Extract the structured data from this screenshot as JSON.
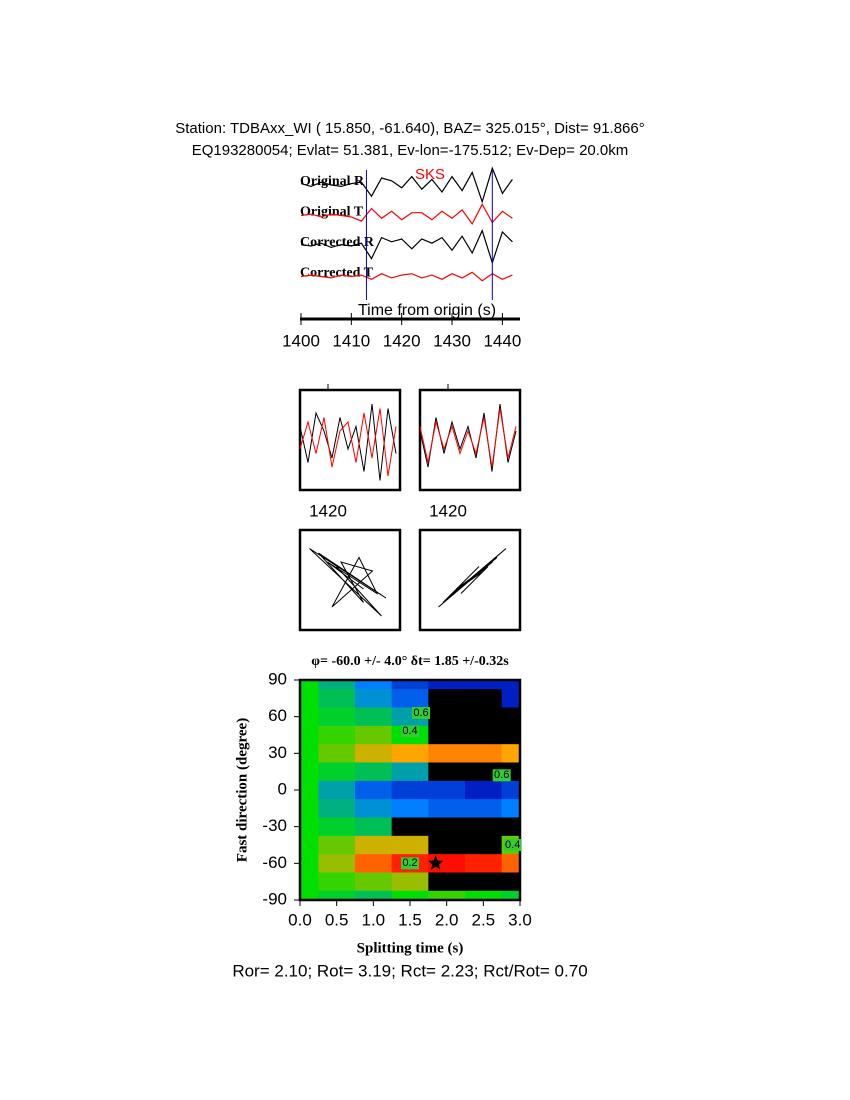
{
  "header": {
    "line1": "Station: TDBAxx_WI (  15.850,  -61.640), BAZ=  325.015°, Dist=   91.866°",
    "line2": "EQ193280054; Evlat=  51.381, Ev-lon=-175.512; Ev-Dep= 20.0km"
  },
  "footer": "Ror= 2.10; Rot= 3.19; Rct= 2.23; Rct/Rot= 0.70",
  "chart_data": [
    {
      "type": "line",
      "x_label": "Time from origin (s)",
      "phase_label": "SKS",
      "xlim": [
        1400,
        1443.5
      ],
      "xticks": [
        1400,
        1410,
        1420,
        1430,
        1440
      ],
      "markers": [
        1413,
        1438
      ],
      "marker_color": "#0000cc",
      "x": [
        1400,
        1402,
        1404,
        1406,
        1408,
        1410,
        1412,
        1414,
        1416,
        1418,
        1420,
        1422,
        1424,
        1426,
        1428,
        1430,
        1432,
        1434,
        1436,
        1438,
        1440,
        1442
      ],
      "series": [
        {
          "name": "Original R",
          "color": "#000000",
          "values": [
            0.1,
            -0.1,
            0.2,
            0,
            -0.1,
            0.1,
            0.2,
            -0.8,
            0.5,
            0.3,
            -0.2,
            0.6,
            -0.3,
            0.4,
            -0.5,
            0.6,
            -0.4,
            0.9,
            -1.2,
            1.2,
            -0.6,
            0.4
          ]
        },
        {
          "name": "Original T",
          "color": "#ff0000",
          "values": [
            0,
            0.1,
            -0.1,
            0.1,
            0,
            -0.1,
            -0.4,
            0.5,
            -0.2,
            0.3,
            -0.3,
            0.2,
            0.2,
            -0.3,
            0.3,
            -0.2,
            0.4,
            -0.6,
            0.8,
            -0.5,
            0.3,
            -0.2
          ]
        },
        {
          "name": "Corrected R",
          "color": "#000000",
          "values": [
            0.1,
            0,
            0.2,
            -0.1,
            0.1,
            0,
            0.2,
            -0.9,
            0.6,
            0.3,
            0.5,
            -0.2,
            0.5,
            0.2,
            0.6,
            -0.3,
            0.7,
            -0.5,
            1.1,
            -1.2,
            1.0,
            0.3
          ]
        },
        {
          "name": "Corrected T",
          "color": "#ff0000",
          "values": [
            0,
            0.1,
            0,
            -0.1,
            0.1,
            0,
            0.1,
            -0.2,
            0.2,
            -0.1,
            0.1,
            0.2,
            -0.1,
            0.1,
            -0.2,
            0.2,
            -0.1,
            0.3,
            -0.3,
            0.2,
            -0.2,
            0.1
          ]
        }
      ]
    },
    {
      "type": "window",
      "panels": [
        {
          "xlim": [
            1413,
            1438
          ],
          "xticks": [
            1420
          ],
          "x": [
            1413,
            1415,
            1417,
            1419,
            1421,
            1423,
            1425,
            1427,
            1429,
            1431,
            1433,
            1435,
            1437
          ],
          "series": [
            {
              "color": "#000000",
              "values": [
                0.3,
                -0.5,
                0.6,
                0.2,
                -0.4,
                0.5,
                -0.2,
                0.3,
                -0.7,
                0.8,
                -0.9,
                0.7,
                -0.3
              ]
            },
            {
              "color": "#ff0000",
              "values": [
                -0.2,
                0.4,
                -0.3,
                0.5,
                -0.6,
                0.2,
                0.4,
                -0.5,
                0.6,
                -0.4,
                0.7,
                -0.8,
                0.3
              ]
            }
          ]
        },
        {
          "xlim": [
            1413,
            1438
          ],
          "xticks": [
            1420
          ],
          "x": [
            1413,
            1415,
            1417,
            1419,
            1421,
            1423,
            1425,
            1427,
            1429,
            1431,
            1433,
            1435,
            1437
          ],
          "series": [
            {
              "color": "#000000",
              "values": [
                0.2,
                -0.6,
                0.5,
                -0.3,
                0.4,
                -0.2,
                0.3,
                -0.4,
                0.6,
                -0.7,
                0.8,
                -0.5,
                0.2
              ]
            },
            {
              "color": "#ff0000",
              "values": [
                0.3,
                -0.5,
                0.4,
                -0.2,
                0.3,
                -0.3,
                0.2,
                -0.3,
                0.5,
                -0.6,
                0.7,
                -0.4,
                0.3
              ]
            }
          ]
        }
      ]
    },
    {
      "type": "heatmap",
      "title": "φ= -60.0 +/- 4.0° δt= 1.85 +/-0.32s",
      "x_label": "Splitting time (s)",
      "y_label": "Fast direction (degree)",
      "xlim": [
        0,
        3
      ],
      "ylim": [
        -90,
        90
      ],
      "xticks": [
        {
          "value": 0,
          "label": "0.0"
        },
        0.5,
        {
          "value": 1,
          "label": "1.0"
        },
        1.5,
        {
          "value": 2,
          "label": "2.0"
        },
        2.5,
        {
          "value": 3,
          "label": "3.0"
        }
      ],
      "yticks": [
        90,
        60,
        30,
        0,
        -30,
        -60,
        -90
      ],
      "x": [
        0,
        0.5,
        1,
        1.5,
        2,
        2.5,
        3
      ],
      "y": [
        90,
        75,
        60,
        45,
        30,
        15,
        0,
        -15,
        -30,
        -45,
        -60,
        -75,
        -90
      ],
      "z": [
        [
          0.5,
          0.65,
          0.8,
          0.9,
          0.95,
          0.95,
          0.95
        ],
        [
          0.5,
          0.6,
          0.75,
          0.85,
          1.1,
          1.1,
          0.95
        ],
        [
          0.5,
          0.55,
          0.6,
          0.7,
          1.1,
          1.2,
          1.1
        ],
        [
          0.5,
          0.45,
          0.4,
          0.5,
          1.1,
          1.1,
          1.1
        ],
        [
          0.5,
          0.4,
          0.3,
          0.25,
          0.2,
          0.2,
          0.25
        ],
        [
          0.5,
          0.55,
          0.6,
          0.7,
          1.1,
          1.1,
          1.1
        ],
        [
          0.5,
          0.7,
          0.85,
          0.9,
          0.9,
          0.95,
          0.9
        ],
        [
          0.5,
          0.65,
          0.75,
          0.8,
          0.85,
          0.85,
          0.8
        ],
        [
          0.5,
          0.55,
          0.6,
          1.1,
          1.2,
          1.1,
          1.1
        ],
        [
          0.5,
          0.4,
          0.3,
          0.3,
          1.1,
          1.1,
          0.4
        ],
        [
          0.5,
          0.35,
          0.15,
          0.05,
          0.02,
          0.05,
          0.15
        ],
        [
          0.5,
          0.45,
          0.4,
          0.35,
          1.1,
          1.1,
          1.1
        ],
        [
          0.5,
          0.55,
          0.6,
          0.5,
          0.45,
          0.5,
          0.55
        ]
      ],
      "colorscale": [
        [
          0,
          "#ff0000"
        ],
        [
          0.25,
          "#ffa500"
        ],
        [
          0.5,
          "#00e000"
        ],
        [
          0.8,
          "#0080ff"
        ],
        [
          1,
          "#0000b0"
        ]
      ],
      "over_color": "#000000",
      "best": {
        "x": 1.85,
        "y": -60
      },
      "contour_labels": [
        {
          "value": 0.6,
          "x": 1.65,
          "y": 63
        },
        {
          "value": 0.4,
          "x": 1.5,
          "y": 48
        },
        {
          "value": 0.2,
          "x": 1.5,
          "y": -60
        },
        {
          "value": 0.4,
          "x": 2.9,
          "y": -45
        },
        {
          "value": 0.6,
          "x": 2.75,
          "y": 12
        }
      ]
    }
  ]
}
